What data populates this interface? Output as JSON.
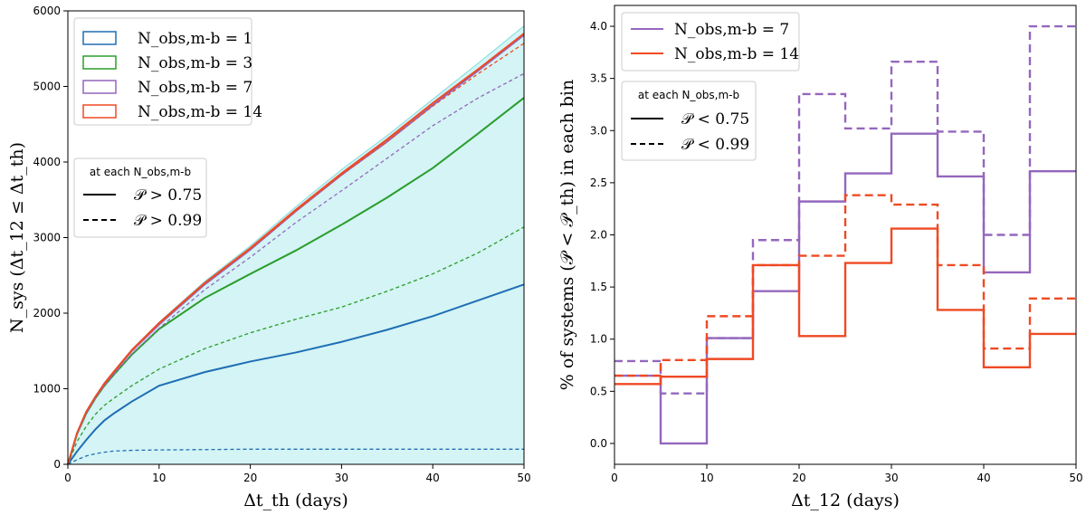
{
  "chart_data": [
    {
      "type": "area",
      "xlabel": "Δt_th (days)",
      "ylabel": "N_sys (Δt_12 ≤ Δt_th)",
      "xlim": [
        0,
        50
      ],
      "ylim": [
        0,
        6000
      ],
      "x_ticks": [
        "0",
        "10",
        "20",
        "30",
        "40",
        "50"
      ],
      "y_ticks": [
        "0",
        "1000",
        "2000",
        "3000",
        "4000",
        "5000",
        "6000"
      ],
      "x": [
        0,
        1,
        2,
        3,
        4,
        5,
        7,
        10,
        15,
        20,
        25,
        30,
        35,
        40,
        45,
        50
      ],
      "band": {
        "name": "shaded total",
        "color": "#d4f4f5",
        "edge_color": "#7fdcdc",
        "values": [
          0,
          420,
          700,
          900,
          1080,
          1230,
          1520,
          1880,
          2420,
          2890,
          3410,
          3900,
          4350,
          4830,
          5310,
          5800
        ]
      },
      "series": [
        {
          "name": "N_obs,m-b = 1",
          "color": "#1f6eb4",
          "style": "solid",
          "values": [
            0,
            170,
            320,
            460,
            580,
            670,
            830,
            1040,
            1220,
            1360,
            1480,
            1620,
            1780,
            1960,
            2170,
            2380
          ]
        },
        {
          "name": "N_obs,m-b = 3",
          "color": "#2a9d2a",
          "style": "solid",
          "values": [
            0,
            400,
            670,
            870,
            1040,
            1180,
            1450,
            1790,
            2200,
            2520,
            2830,
            3170,
            3530,
            3920,
            4380,
            4850
          ]
        },
        {
          "name": "N_obs,m-b = 7",
          "color": "#9467bd",
          "style": "solid",
          "values": [
            0,
            410,
            690,
            890,
            1060,
            1210,
            1500,
            1850,
            2380,
            2840,
            3350,
            3830,
            4270,
            4750,
            5210,
            5680
          ]
        },
        {
          "name": "N_obs,m-b = 14",
          "color": "#ef4a23",
          "style": "solid",
          "values": [
            0,
            410,
            690,
            890,
            1070,
            1220,
            1510,
            1870,
            2400,
            2860,
            3370,
            3850,
            4300,
            4780,
            5230,
            5700
          ]
        },
        {
          "name": "N_obs,m-b = 1 (P > 0.99)",
          "color": "#1f6eb4",
          "style": "dashed",
          "values": [
            0,
            60,
            110,
            140,
            160,
            175,
            185,
            190,
            195,
            200,
            200,
            200,
            200,
            200,
            200,
            200
          ]
        },
        {
          "name": "N_obs,m-b = 3 (P > 0.99)",
          "color": "#2a9d2a",
          "style": "dashed",
          "values": [
            0,
            300,
            500,
            660,
            780,
            870,
            1040,
            1260,
            1530,
            1740,
            1920,
            2080,
            2290,
            2520,
            2800,
            3140
          ]
        },
        {
          "name": "N_obs,m-b = 7 (P > 0.99)",
          "color": "#9467bd",
          "style": "dashed",
          "values": [
            0,
            400,
            670,
            870,
            1040,
            1180,
            1460,
            1800,
            2310,
            2740,
            3200,
            3620,
            4050,
            4480,
            4850,
            5170
          ]
        },
        {
          "name": "N_obs,m-b = 14 (P > 0.99)",
          "color": "#ef4a23",
          "style": "dashed",
          "values": [
            0,
            410,
            690,
            890,
            1060,
            1210,
            1500,
            1860,
            2390,
            2850,
            3350,
            3830,
            4270,
            4740,
            5170,
            5570
          ]
        }
      ],
      "legend": {
        "placement": "top-left",
        "entries": [
          {
            "label": "N_obs,m-b = 1",
            "color": "#1f6eb4"
          },
          {
            "label": "N_obs,m-b = 3",
            "color": "#2a9d2a"
          },
          {
            "label": "N_obs,m-b = 7",
            "color": "#9467bd"
          },
          {
            "label": "N_obs,m-b = 14",
            "color": "#ef4a23"
          }
        ]
      },
      "style_legend": {
        "placement": "center-left",
        "title": "at each N_obs,m-b",
        "entries": [
          {
            "label": "𝒫 > 0.75",
            "style": "solid"
          },
          {
            "label": "𝒫 > 0.99",
            "style": "dashed"
          }
        ]
      }
    },
    {
      "type": "step",
      "xlabel": "Δt_12 (days)",
      "ylabel": "% of systems (𝒫 < 𝒫_th) in each bin",
      "xlim": [
        0,
        50
      ],
      "ylim": [
        -0.2,
        4.2
      ],
      "x_ticks": [
        "0",
        "10",
        "20",
        "30",
        "40",
        "50"
      ],
      "y_ticks": [
        "0.0",
        "0.5",
        "1.0",
        "1.5",
        "2.0",
        "2.5",
        "3.0",
        "3.5",
        "4.0"
      ],
      "bin_edges": [
        0,
        5,
        10,
        15,
        20,
        25,
        30,
        35,
        40,
        45,
        50
      ],
      "series": [
        {
          "name": "N_obs,m-b = 7 (P < 0.75)",
          "color": "#9467bd",
          "style": "solid",
          "values": [
            0.65,
            0.0,
            1.01,
            1.46,
            2.32,
            2.59,
            2.97,
            2.56,
            1.64,
            2.61
          ]
        },
        {
          "name": "N_obs,m-b = 7 (P < 0.99)",
          "color": "#9467bd",
          "style": "dashed",
          "values": [
            0.79,
            0.48,
            1.01,
            1.95,
            3.35,
            3.02,
            3.66,
            2.99,
            2.0,
            4.0
          ]
        },
        {
          "name": "N_obs,m-b = 14 (P < 0.75)",
          "color": "#ef4a23",
          "style": "solid",
          "values": [
            0.57,
            0.64,
            0.81,
            1.71,
            1.03,
            1.73,
            2.06,
            1.28,
            0.73,
            1.05
          ]
        },
        {
          "name": "N_obs,m-b = 14 (P < 0.99)",
          "color": "#ef4a23",
          "style": "dashed",
          "values": [
            0.65,
            0.8,
            1.22,
            1.71,
            1.8,
            2.38,
            2.29,
            1.71,
            0.91,
            1.39
          ]
        }
      ],
      "legend": {
        "placement": "top-left",
        "entries": [
          {
            "label": "N_obs,m-b = 7",
            "color": "#9467bd"
          },
          {
            "label": "N_obs,m-b = 14",
            "color": "#ef4a23"
          }
        ]
      },
      "style_legend": {
        "placement": "upper-left",
        "title": "at each N_obs,m-b",
        "entries": [
          {
            "label": "𝒫 < 0.75",
            "style": "solid"
          },
          {
            "label": "𝒫 < 0.99",
            "style": "dashed"
          }
        ]
      }
    }
  ]
}
